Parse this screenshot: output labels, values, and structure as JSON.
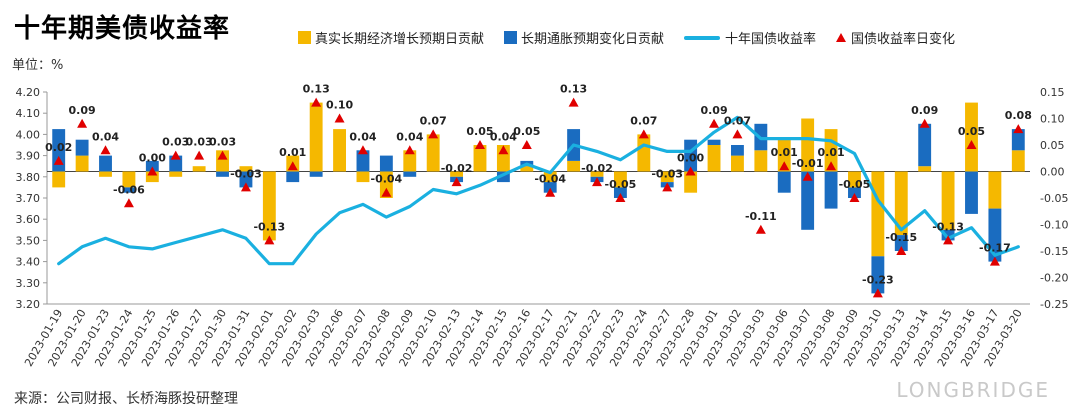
{
  "title": "十年期美债收益率",
  "unit_label": "单位：%",
  "source": "来源：公司财报、长桥海豚投研整理",
  "watermark": "LONGBRIDGE",
  "colors": {
    "real": "#f5b800",
    "inflation": "#1a6cc0",
    "line": "#1ab0e0",
    "marker": "#e00000"
  },
  "legend": [
    {
      "label": "真实长期经济增长预期日贡献",
      "kind": "box",
      "color": "#f5b800"
    },
    {
      "label": "长期通胀预期变化日贡献",
      "kind": "box",
      "color": "#1a6cc0"
    },
    {
      "label": "十年国债收益率",
      "kind": "line",
      "color": "#1ab0e0"
    },
    {
      "label": "国债收益率日变化",
      "kind": "triangle",
      "color": "#e00000"
    }
  ],
  "chart_data": {
    "type": "bar",
    "title": "十年期美债收益率",
    "categories": [
      "2023-01-19",
      "2023-01-20",
      "2023-01-23",
      "2023-01-24",
      "2023-01-25",
      "2023-01-26",
      "2023-01-27",
      "2023-01-30",
      "2023-01-31",
      "2023-02-01",
      "2023-02-02",
      "2023-02-03",
      "2023-02-06",
      "2023-02-07",
      "2023-02-08",
      "2023-02-09",
      "2023-02-10",
      "2023-02-13",
      "2023-02-14",
      "2023-02-15",
      "2023-02-16",
      "2023-02-17",
      "2023-02-21",
      "2023-02-22",
      "2023-02-23",
      "2023-02-24",
      "2023-02-27",
      "2023-02-28",
      "2023-03-01",
      "2023-03-02",
      "2023-03-03",
      "2023-03-06",
      "2023-03-07",
      "2023-03-08",
      "2023-03-09",
      "2023-03-10",
      "2023-03-13",
      "2023-03-14",
      "2023-03-15",
      "2023-03-16",
      "2023-03-17",
      "2023-03-20"
    ],
    "series": [
      {
        "name": "真实长期经济增长预期日贡献",
        "type": "bar",
        "axis": "right",
        "values": [
          -0.03,
          0.03,
          -0.01,
          -0.03,
          -0.02,
          -0.01,
          0.01,
          0.04,
          0.01,
          -0.13,
          0.03,
          0.13,
          0.08,
          -0.02,
          -0.05,
          0.04,
          0.07,
          -0.01,
          0.05,
          0.05,
          0.01,
          -0.02,
          0.02,
          -0.01,
          -0.03,
          0.07,
          -0.02,
          -0.04,
          0.05,
          0.03,
          0.04,
          0.06,
          0.1,
          0.08,
          -0.03,
          -0.16,
          -0.12,
          0.01,
          -0.11,
          0.13,
          -0.07,
          0.04
        ]
      },
      {
        "name": "长期通胀预期变化日贡献",
        "type": "bar",
        "axis": "right",
        "values": [
          0.08,
          0.03,
          0.03,
          -0.01,
          0.02,
          0.03,
          0.0,
          -0.01,
          -0.03,
          0.0,
          -0.02,
          -0.01,
          0.0,
          0.04,
          0.03,
          -0.01,
          0.0,
          -0.01,
          0.0,
          -0.02,
          0.01,
          -0.02,
          0.06,
          -0.01,
          -0.02,
          0.0,
          -0.01,
          0.06,
          0.01,
          0.02,
          0.05,
          -0.04,
          -0.11,
          -0.07,
          -0.02,
          -0.07,
          -0.03,
          0.08,
          -0.02,
          -0.08,
          -0.1,
          0.04
        ]
      },
      {
        "name": "十年国债收益率",
        "type": "line",
        "axis": "left",
        "values": [
          3.39,
          3.47,
          3.51,
          3.47,
          3.46,
          3.49,
          3.52,
          3.55,
          3.51,
          3.39,
          3.39,
          3.53,
          3.63,
          3.67,
          3.61,
          3.66,
          3.74,
          3.72,
          3.76,
          3.81,
          3.86,
          3.82,
          3.95,
          3.92,
          3.88,
          3.95,
          3.92,
          3.92,
          4.01,
          4.08,
          3.98,
          3.98,
          3.98,
          3.97,
          3.91,
          3.69,
          3.55,
          3.64,
          3.51,
          3.56,
          3.43,
          3.47
        ]
      },
      {
        "name": "国债收益率日变化",
        "type": "scatter",
        "axis": "right",
        "values": [
          0.02,
          0.09,
          0.04,
          -0.06,
          0.0,
          0.03,
          0.03,
          0.03,
          -0.03,
          -0.13,
          0.01,
          0.13,
          0.1,
          0.04,
          -0.04,
          0.04,
          0.07,
          -0.02,
          0.05,
          0.04,
          0.05,
          -0.04,
          0.13,
          -0.02,
          -0.05,
          0.07,
          -0.03,
          0.0,
          0.09,
          0.07,
          -0.11,
          0.01,
          -0.01,
          0.01,
          -0.05,
          -0.23,
          -0.15,
          0.09,
          -0.13,
          0.05,
          -0.17,
          0.08
        ],
        "labels": [
          "0.02",
          "0.09",
          "0.04",
          "-0.06",
          "0.00",
          "0.03",
          "0.03",
          "0.03",
          "-0.03",
          "-0.13",
          "0.01",
          "0.13",
          "0.10",
          "0.04",
          "-0.04",
          "0.04",
          "0.07",
          "-0.02",
          "0.05",
          "0.04",
          "0.05",
          "-0.04",
          "0.13",
          "-0.02",
          "-0.05",
          "0.07",
          "-0.03",
          "0.00",
          "0.09",
          "0.07",
          "-0.11",
          "0.01",
          "-0.01",
          "0.01",
          "-0.05",
          "-0.23",
          "-0.15",
          "0.09",
          "-0.13",
          "0.05",
          "-0.17",
          "0.08"
        ]
      }
    ],
    "left_axis": {
      "ylim": [
        3.2,
        4.2
      ],
      "ticks": [
        "3.20",
        "3.30",
        "3.40",
        "3.50",
        "3.60",
        "3.70",
        "3.80",
        "3.90",
        "4.00",
        "4.10",
        "4.20"
      ]
    },
    "right_axis": {
      "ylim": [
        -0.25,
        0.15
      ],
      "ticks": [
        "-0.25",
        "-0.20",
        "-0.15",
        "-0.10",
        "-0.05",
        "0.00",
        "0.05",
        "0.10",
        "0.15"
      ]
    },
    "xlabel": "",
    "ylabel": "单位：%",
    "grid": false,
    "legend_position": "top"
  }
}
